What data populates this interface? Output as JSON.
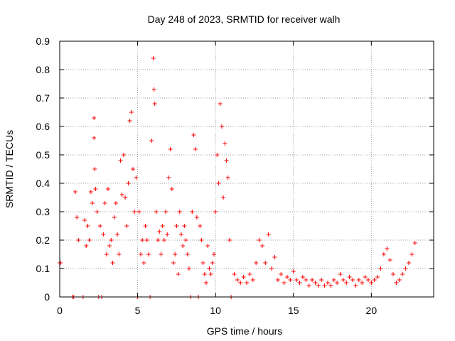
{
  "chart_data": {
    "type": "scatter",
    "title": "Day 248 of 2023, SRMTID for receiver walh",
    "xlabel": "GPS time / hours",
    "ylabel": "SRMTID / TECUs",
    "xlim": [
      0,
      24
    ],
    "ylim": [
      0,
      0.9
    ],
    "xticks": [
      0,
      5,
      10,
      15,
      20
    ],
    "yticks": [
      0,
      0.1,
      0.2,
      0.3,
      0.4,
      0.5,
      0.6,
      0.7,
      0.8,
      0.9
    ],
    "grid": true,
    "marker": "+",
    "series": [
      {
        "name": "SRMTID",
        "color": "#ff0000",
        "x": [
          0.0,
          0.05,
          0.8,
          0.9,
          1.0,
          1.1,
          1.2,
          1.5,
          1.6,
          1.7,
          1.8,
          1.9,
          2.0,
          2.1,
          2.2,
          2.2,
          2.25,
          2.3,
          2.4,
          2.5,
          2.6,
          2.7,
          2.8,
          2.9,
          3.0,
          3.1,
          3.2,
          3.3,
          3.4,
          3.5,
          3.6,
          3.7,
          3.8,
          3.9,
          4.0,
          4.1,
          4.2,
          4.3,
          4.4,
          4.5,
          4.6,
          4.7,
          4.8,
          4.9,
          5.0,
          5.1,
          5.2,
          5.3,
          5.4,
          5.5,
          5.6,
          5.7,
          5.8,
          5.9,
          6.0,
          6.05,
          6.1,
          6.2,
          6.3,
          6.4,
          6.5,
          6.6,
          6.7,
          6.8,
          6.9,
          7.0,
          7.1,
          7.2,
          7.3,
          7.4,
          7.5,
          7.6,
          7.7,
          7.8,
          7.9,
          8.0,
          8.1,
          8.2,
          8.3,
          8.4,
          8.5,
          8.6,
          8.7,
          8.8,
          8.9,
          9.0,
          9.1,
          9.2,
          9.3,
          9.4,
          9.5,
          9.6,
          9.7,
          9.8,
          9.9,
          10.0,
          10.1,
          10.2,
          10.3,
          10.4,
          10.5,
          10.6,
          10.7,
          10.8,
          10.9,
          11.0,
          11.2,
          11.4,
          11.6,
          11.8,
          12.0,
          12.2,
          12.4,
          12.6,
          12.8,
          13.0,
          13.2,
          13.4,
          13.6,
          13.8,
          14.0,
          14.2,
          14.4,
          14.6,
          14.8,
          15.0,
          15.2,
          15.4,
          15.6,
          15.8,
          16.0,
          16.2,
          16.4,
          16.6,
          16.8,
          17.0,
          17.2,
          17.4,
          17.6,
          17.8,
          18.0,
          18.2,
          18.4,
          18.6,
          18.8,
          19.0,
          19.2,
          19.4,
          19.6,
          19.8,
          20.0,
          20.2,
          20.4,
          20.6,
          20.8,
          21.0,
          21.2,
          21.4,
          21.6,
          21.8,
          22.0,
          22.2,
          22.4,
          22.6,
          22.8
        ],
        "y": [
          0.12,
          0.12,
          0.0,
          0.0,
          0.37,
          0.28,
          0.2,
          0.0,
          0.27,
          0.18,
          0.25,
          0.2,
          0.37,
          0.33,
          0.63,
          0.56,
          0.45,
          0.38,
          0.3,
          0.0,
          0.25,
          0.0,
          0.22,
          0.33,
          0.15,
          0.38,
          0.18,
          0.2,
          0.12,
          0.28,
          0.33,
          0.22,
          0.15,
          0.48,
          0.36,
          0.5,
          0.35,
          0.25,
          0.4,
          0.62,
          0.65,
          0.45,
          0.3,
          0.42,
          0.0,
          0.3,
          0.15,
          0.2,
          0.12,
          0.25,
          0.2,
          0.15,
          0.0,
          0.55,
          0.84,
          0.73,
          0.68,
          0.3,
          0.2,
          0.23,
          0.15,
          0.25,
          0.2,
          0.3,
          0.22,
          0.42,
          0.52,
          0.38,
          0.12,
          0.15,
          0.25,
          0.08,
          0.3,
          0.22,
          0.18,
          0.25,
          0.2,
          0.15,
          0.1,
          0.0,
          0.3,
          0.57,
          0.52,
          0.28,
          0.0,
          0.25,
          0.2,
          0.12,
          0.08,
          0.05,
          0.18,
          0.1,
          0.08,
          0.12,
          0.15,
          0.3,
          0.5,
          0.4,
          0.68,
          0.6,
          0.35,
          0.54,
          0.48,
          0.42,
          0.2,
          0.0,
          0.08,
          0.06,
          0.05,
          0.07,
          0.05,
          0.08,
          0.06,
          0.12,
          0.2,
          0.18,
          0.12,
          0.22,
          0.1,
          0.14,
          0.06,
          0.08,
          0.05,
          0.07,
          0.06,
          0.09,
          0.06,
          0.05,
          0.07,
          0.06,
          0.04,
          0.06,
          0.05,
          0.04,
          0.06,
          0.04,
          0.05,
          0.04,
          0.06,
          0.05,
          0.08,
          0.06,
          0.05,
          0.07,
          0.06,
          0.04,
          0.06,
          0.05,
          0.07,
          0.06,
          0.05,
          0.06,
          0.07,
          0.1,
          0.15,
          0.17,
          0.13,
          0.08,
          0.05,
          0.06,
          0.08,
          0.1,
          0.12,
          0.15,
          0.19
        ]
      }
    ]
  }
}
